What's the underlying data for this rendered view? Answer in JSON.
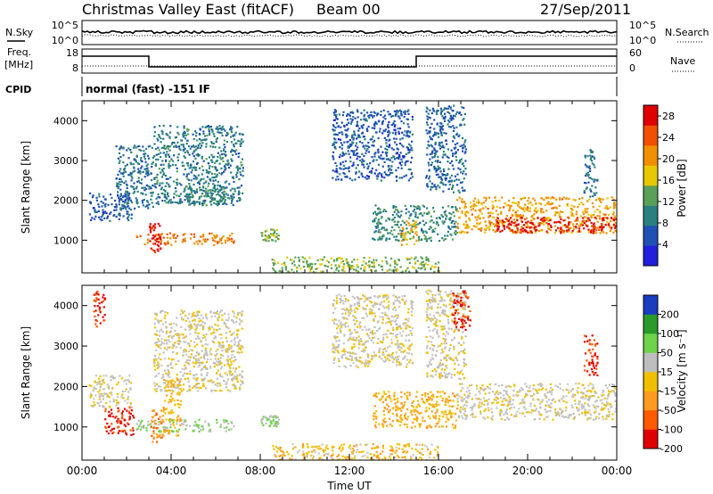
{
  "header": {
    "title": "Christmas Valley East (fitACF)",
    "beam": "Beam 00",
    "date": "27/Sep/2011"
  },
  "strip_labels": {
    "nsky": "N.Sky",
    "nsearch": "N.Search",
    "freq": "Freq.",
    "freq_unit": "[MHz]",
    "nave": "Nave",
    "cpid": "CPID",
    "cpid_value": "normal (fast) -151 IF"
  },
  "strip_ticks": {
    "noise_left": [
      "10^5",
      "10^0"
    ],
    "noise_right": [
      "10^5",
      "10^0"
    ],
    "freq_left": [
      "18",
      "8"
    ],
    "nave_right": [
      "60",
      "0"
    ]
  },
  "colors": {
    "power": [
      "#1f1fdc",
      "#1f50b4",
      "#2a7f7f",
      "#5aa05a",
      "#e8c800",
      "#f09000",
      "#f05000",
      "#e00000"
    ],
    "velocity": [
      "#e00000",
      "#ff5a00",
      "#ff9a20",
      "#f0c000",
      "#bebebe",
      "#6ed24a",
      "#2a9a2a",
      "#1a3cbe"
    ],
    "ground_scatter": "#c8c8c8"
  },
  "chart_data": [
    {
      "type": "heatmap",
      "panel": "power",
      "ylabel": "Slant Range [km]",
      "xlabel": "",
      "yticks": [
        1000,
        2000,
        3000,
        4000
      ],
      "ylim": [
        180,
        4500
      ],
      "xlim": [
        0,
        24
      ],
      "colorbar": {
        "label": "Power [dB]",
        "ticks": [
          4,
          8,
          12,
          16,
          20,
          24,
          28
        ],
        "range": [
          0,
          30
        ]
      },
      "scatter_regions": [
        {
          "t0": 2.4,
          "t1": 6.8,
          "r0": 900,
          "r1": 1200,
          "value": 22
        },
        {
          "t0": 3.0,
          "t1": 3.5,
          "r0": 650,
          "r1": 1450,
          "value": 28
        },
        {
          "t0": 0.3,
          "t1": 2.2,
          "r0": 1500,
          "r1": 2200,
          "value": 6
        },
        {
          "t0": 1.5,
          "t1": 3.2,
          "r0": 1800,
          "r1": 3400,
          "value": 8
        },
        {
          "t0": 3.2,
          "t1": 7.2,
          "r0": 1900,
          "r1": 3900,
          "value": 9
        },
        {
          "t0": 4.6,
          "t1": 6.4,
          "r0": 1900,
          "r1": 2400,
          "value": 10
        },
        {
          "t0": 8.0,
          "t1": 8.8,
          "r0": 1000,
          "r1": 1300,
          "value": 14
        },
        {
          "t0": 11.2,
          "t1": 14.8,
          "r0": 2500,
          "r1": 4300,
          "value": 6
        },
        {
          "t0": 13.0,
          "t1": 16.8,
          "r0": 1000,
          "r1": 1900,
          "value": 10
        },
        {
          "t0": 14.2,
          "t1": 15.0,
          "r0": 900,
          "r1": 1500,
          "value": 20
        },
        {
          "t0": 15.4,
          "t1": 17.2,
          "r0": 2200,
          "r1": 4400,
          "value": 7
        },
        {
          "t0": 16.8,
          "t1": 24.0,
          "r0": 1200,
          "r1": 2100,
          "value": 20
        },
        {
          "t0": 18.5,
          "t1": 24.0,
          "r0": 1200,
          "r1": 1600,
          "value": 28
        },
        {
          "t0": 22.5,
          "t1": 23.1,
          "r0": 2100,
          "r1": 3300,
          "value": 8
        },
        {
          "t0": 8.5,
          "t1": 16.0,
          "r0": 180,
          "r1": 600,
          "value": 14
        }
      ]
    },
    {
      "type": "heatmap",
      "panel": "velocity",
      "ylabel": "Slant Range [km]",
      "xlabel": "Time UT",
      "xticks": [
        "00:00",
        "04:00",
        "08:00",
        "12:00",
        "16:00",
        "20:00",
        "00:00"
      ],
      "yticks": [
        1000,
        2000,
        3000,
        4000
      ],
      "ylim": [
        180,
        4500
      ],
      "xlim": [
        0,
        24
      ],
      "colorbar": {
        "label": "Velocity [m s⁻¹]",
        "ticks": [
          200,
          100,
          50,
          15,
          -15,
          -50,
          -100,
          -200
        ],
        "range": [
          -250,
          250
        ]
      },
      "scatter_regions": [
        {
          "t0": 2.4,
          "t1": 6.8,
          "r0": 900,
          "r1": 1200,
          "value": 60
        },
        {
          "t0": 3.0,
          "t1": 3.6,
          "r0": 650,
          "r1": 1450,
          "value": -120
        },
        {
          "t0": 0.3,
          "t1": 2.2,
          "r0": 1500,
          "r1": 2300,
          "value": 0
        },
        {
          "t0": 1.0,
          "t1": 2.3,
          "r0": 800,
          "r1": 1500,
          "value": -200
        },
        {
          "t0": 3.2,
          "t1": 7.2,
          "r0": 1900,
          "r1": 3900,
          "value": 0
        },
        {
          "t0": 3.6,
          "t1": 4.4,
          "r0": 800,
          "r1": 2200,
          "value": -60
        },
        {
          "t0": 8.0,
          "t1": 8.8,
          "r0": 1000,
          "r1": 1300,
          "value": 60
        },
        {
          "t0": 11.2,
          "t1": 14.8,
          "r0": 2500,
          "r1": 4300,
          "value": 0
        },
        {
          "t0": 13.0,
          "t1": 16.8,
          "r0": 1000,
          "r1": 1900,
          "value": -60
        },
        {
          "t0": 15.4,
          "t1": 17.2,
          "r0": 2200,
          "r1": 4400,
          "value": 0
        },
        {
          "t0": 16.6,
          "t1": 17.4,
          "r0": 3400,
          "r1": 4400,
          "value": -200
        },
        {
          "t0": 16.8,
          "t1": 24.0,
          "r0": 1200,
          "r1": 2100,
          "value": 0
        },
        {
          "t0": 22.5,
          "t1": 23.1,
          "r0": 2300,
          "r1": 3300,
          "value": -200
        },
        {
          "t0": 0.5,
          "t1": 1.0,
          "r0": 3500,
          "r1": 4400,
          "value": -200
        },
        {
          "t0": 8.5,
          "t1": 16.0,
          "r0": 180,
          "r1": 600,
          "value": -40
        }
      ]
    }
  ]
}
